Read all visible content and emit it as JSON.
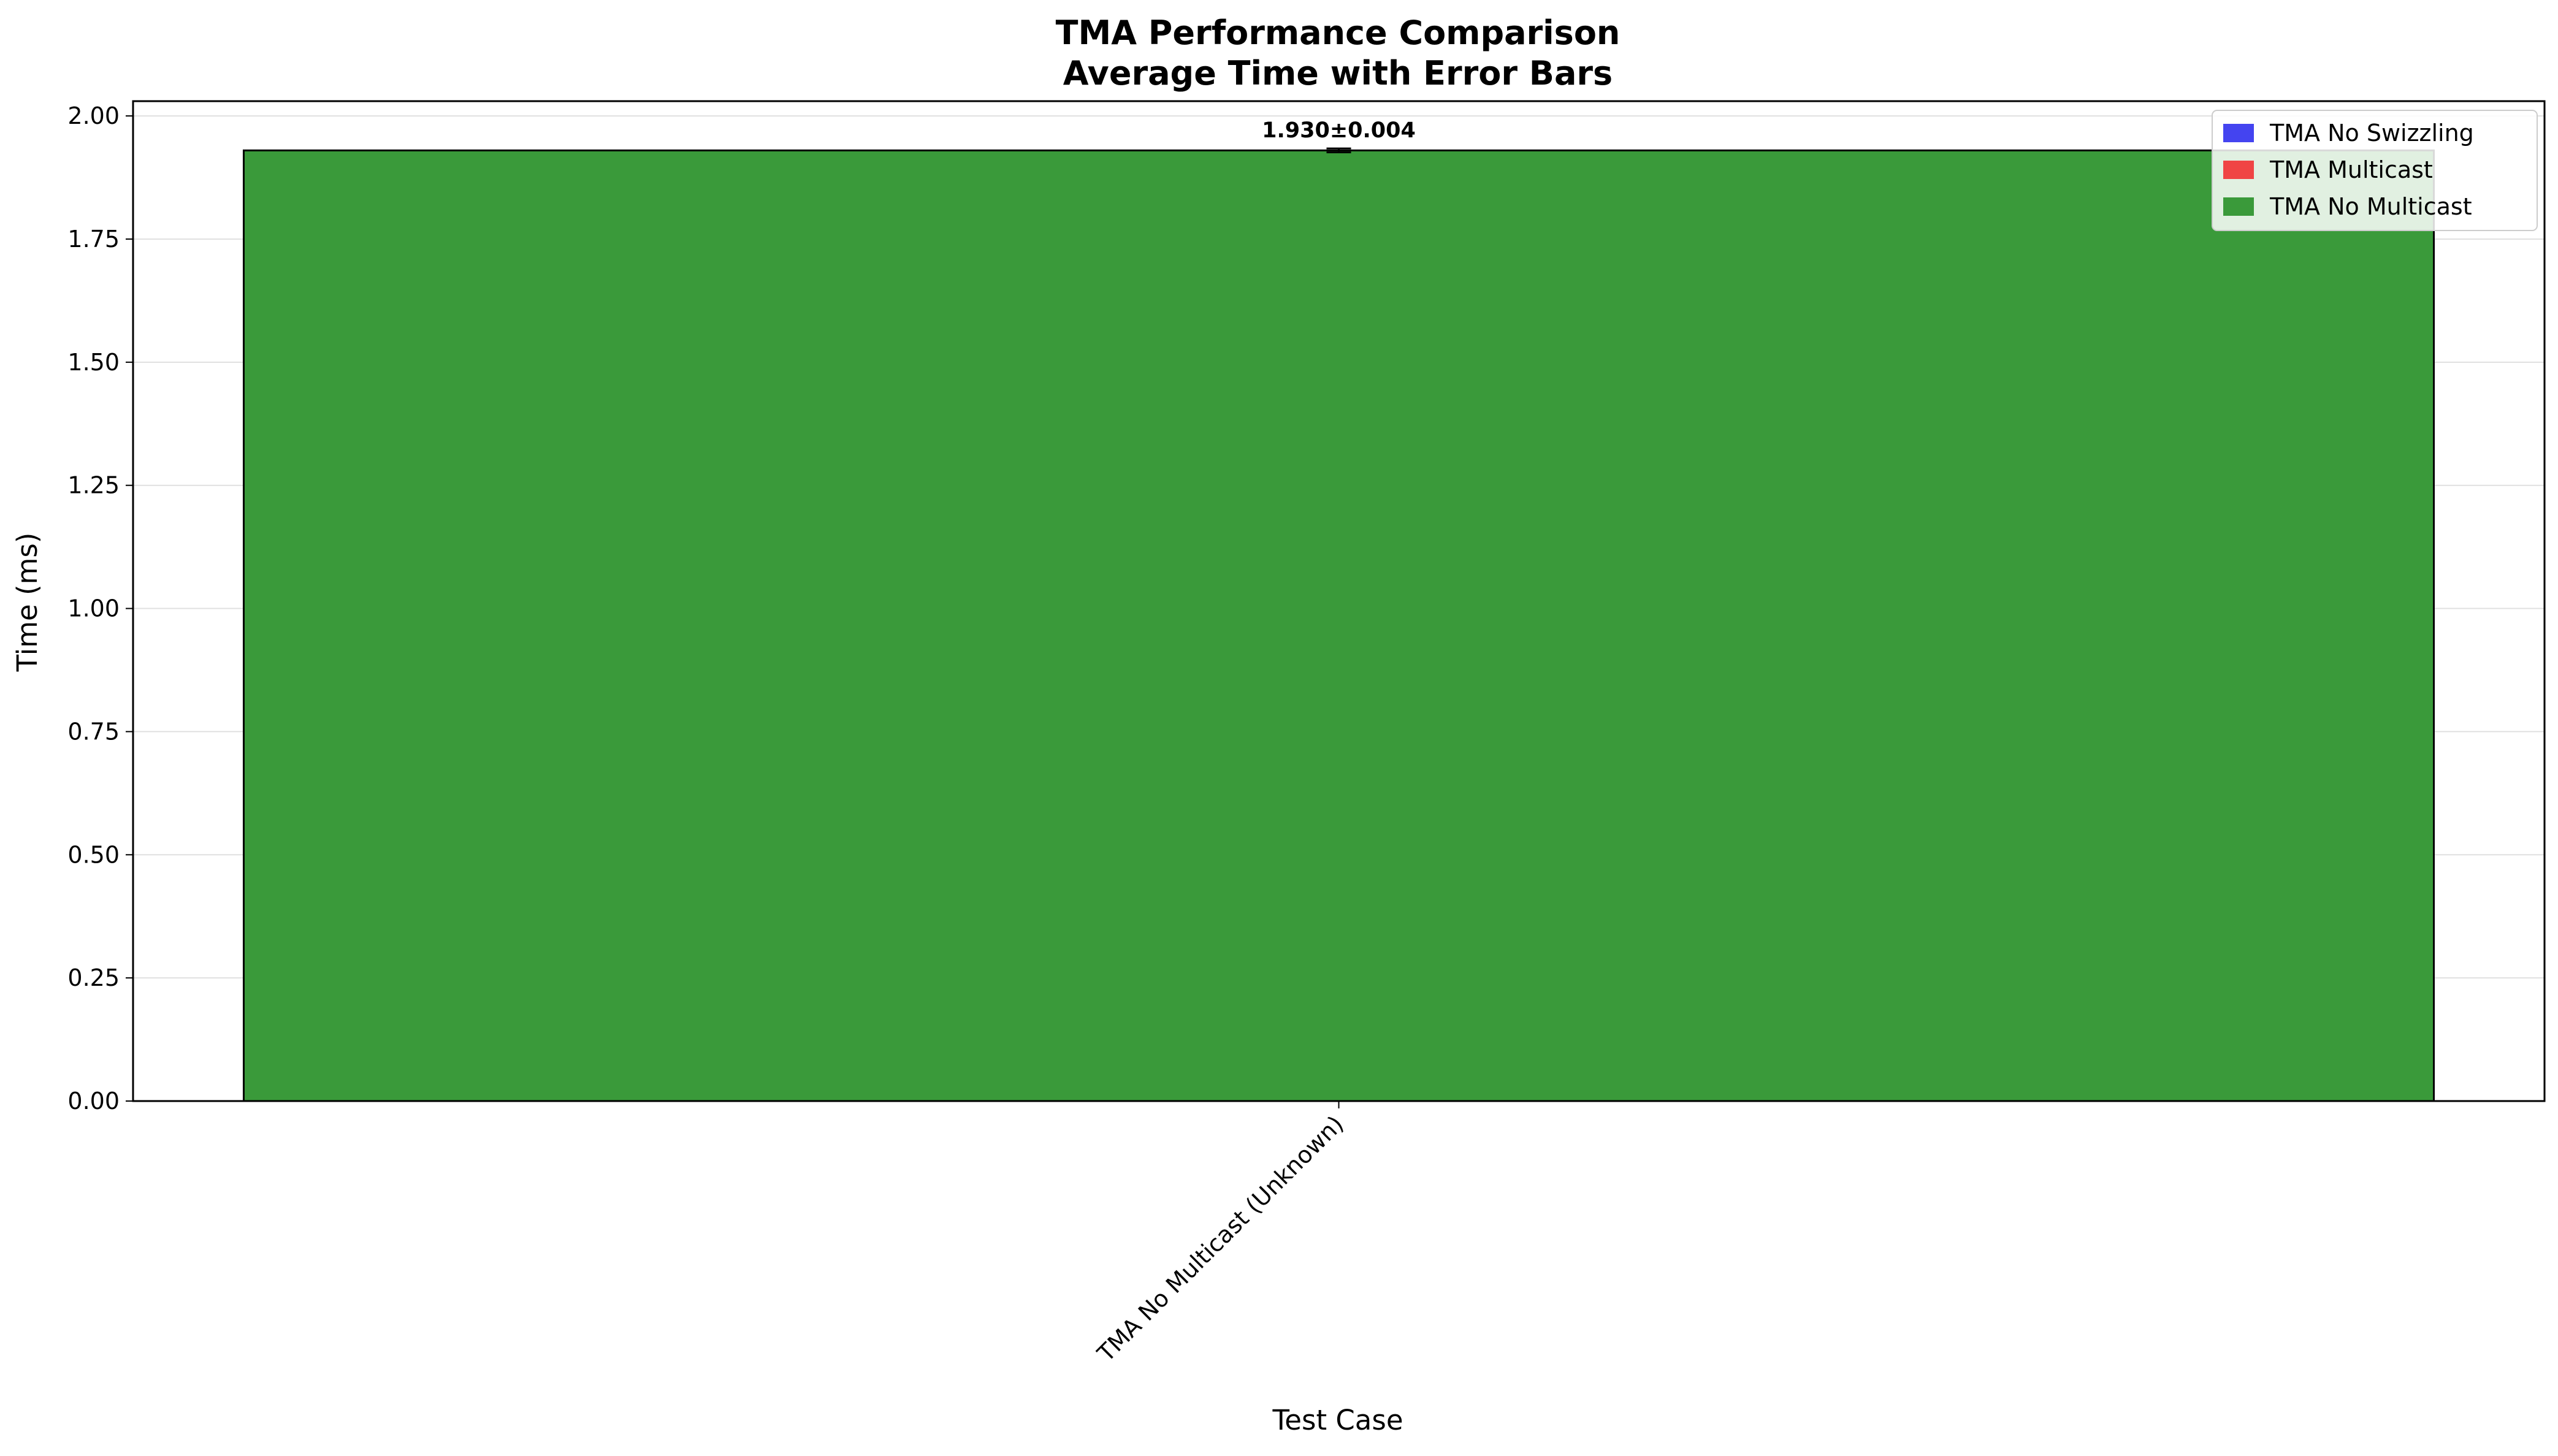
{
  "chart_data": {
    "type": "bar",
    "title": "TMA Performance Comparison",
    "subtitle": "Average Time with Error Bars",
    "xlabel": "Test Case",
    "ylabel": "Time (ms)",
    "ylim": [
      0,
      2.03
    ],
    "yticks": [
      0.0,
      0.25,
      0.5,
      0.75,
      1.0,
      1.25,
      1.5,
      1.75,
      2.0
    ],
    "ytick_labels": [
      "0.00",
      "0.25",
      "0.50",
      "0.75",
      "1.00",
      "1.25",
      "1.50",
      "1.75",
      "2.00"
    ],
    "categories": [
      "TMA No Multicast (Unknown)"
    ],
    "values": [
      1.93
    ],
    "errors": [
      0.004
    ],
    "bar_labels": [
      "1.930±0.004"
    ],
    "bar_colors": [
      "#3a9a3a"
    ],
    "grid": "y",
    "legend": {
      "placement": "top-right",
      "entries": [
        {
          "label": "TMA No Swizzling",
          "color": "#4444f0"
        },
        {
          "label": "TMA Multicast",
          "color": "#f04444"
        },
        {
          "label": "TMA No Multicast",
          "color": "#3a9a3a"
        }
      ]
    }
  }
}
